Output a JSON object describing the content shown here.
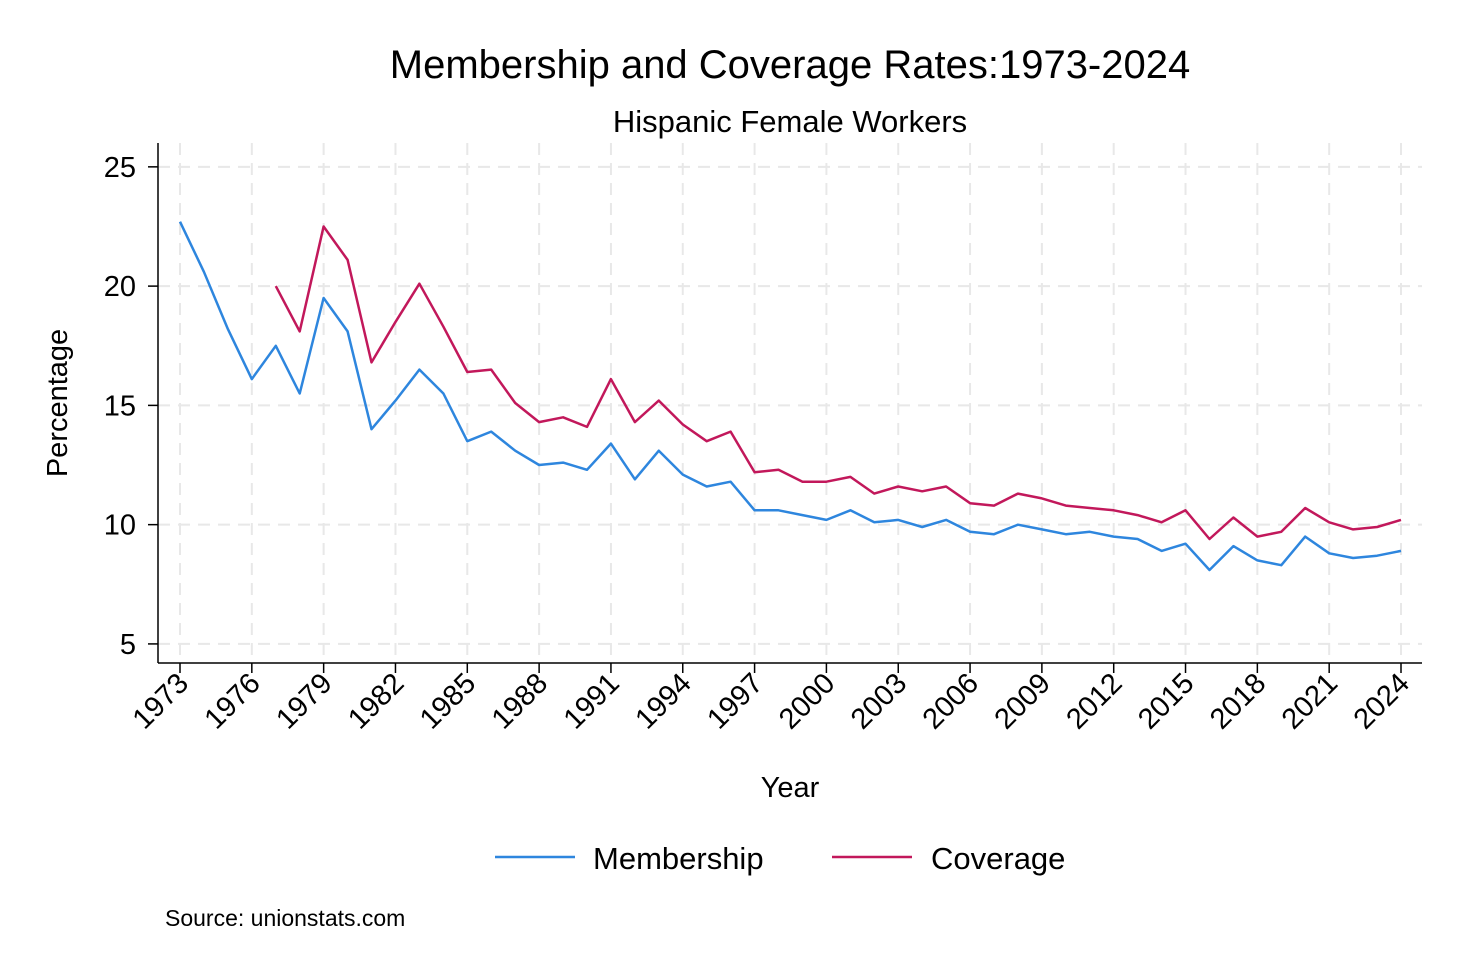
{
  "chart_data": {
    "type": "line",
    "title": "Membership and Coverage Rates:1973-2024",
    "subtitle": "Hispanic Female Workers",
    "xlabel": "Year",
    "ylabel": "Percentage",
    "xlim": [
      1973,
      2024
    ],
    "ylim": [
      4.2,
      26
    ],
    "x_ticks": [
      1973,
      1976,
      1979,
      1982,
      1985,
      1988,
      1991,
      1994,
      1997,
      2000,
      2003,
      2006,
      2009,
      2012,
      2015,
      2018,
      2021,
      2024
    ],
    "y_ticks": [
      5,
      10,
      15,
      20,
      25
    ],
    "grid": true,
    "legend_position": "bottom",
    "series": [
      {
        "name": "Membership",
        "color": "#2e86de",
        "points": [
          [
            1973,
            22.7
          ],
          [
            1974,
            20.6
          ],
          [
            1975,
            18.2
          ],
          [
            1976,
            16.1
          ],
          [
            1977,
            17.5
          ],
          [
            1978,
            15.5
          ],
          [
            1979,
            19.5
          ],
          [
            1980,
            18.1
          ],
          [
            1981,
            14.0
          ],
          [
            1982,
            15.2
          ],
          [
            1983,
            16.5
          ],
          [
            1984,
            15.5
          ],
          [
            1985,
            13.5
          ],
          [
            1986,
            13.9
          ],
          [
            1987,
            13.1
          ],
          [
            1988,
            12.5
          ],
          [
            1989,
            12.6
          ],
          [
            1990,
            12.3
          ],
          [
            1991,
            13.4
          ],
          [
            1992,
            11.9
          ],
          [
            1993,
            13.1
          ],
          [
            1994,
            12.1
          ],
          [
            1995,
            11.6
          ],
          [
            1996,
            11.8
          ],
          [
            1997,
            10.6
          ],
          [
            1998,
            10.6
          ],
          [
            1999,
            10.4
          ],
          [
            2000,
            10.2
          ],
          [
            2001,
            10.6
          ],
          [
            2002,
            10.1
          ],
          [
            2003,
            10.2
          ],
          [
            2004,
            9.9
          ],
          [
            2005,
            10.2
          ],
          [
            2006,
            9.7
          ],
          [
            2007,
            9.6
          ],
          [
            2008,
            10.0
          ],
          [
            2009,
            9.8
          ],
          [
            2010,
            9.6
          ],
          [
            2011,
            9.7
          ],
          [
            2012,
            9.5
          ],
          [
            2013,
            9.4
          ],
          [
            2014,
            8.9
          ],
          [
            2015,
            9.2
          ],
          [
            2016,
            8.1
          ],
          [
            2017,
            9.1
          ],
          [
            2018,
            8.5
          ],
          [
            2019,
            8.3
          ],
          [
            2020,
            9.5
          ],
          [
            2021,
            8.8
          ],
          [
            2022,
            8.6
          ],
          [
            2023,
            8.7
          ],
          [
            2024,
            8.9
          ]
        ]
      },
      {
        "name": "Coverage",
        "color": "#c2185b",
        "points": [
          [
            1977,
            20.0
          ],
          [
            1978,
            18.1
          ],
          [
            1979,
            22.5
          ],
          [
            1980,
            21.1
          ],
          [
            1981,
            16.8
          ],
          [
            1982,
            18.5
          ],
          [
            1983,
            20.1
          ],
          [
            1984,
            18.3
          ],
          [
            1985,
            16.4
          ],
          [
            1986,
            16.5
          ],
          [
            1987,
            15.1
          ],
          [
            1988,
            14.3
          ],
          [
            1989,
            14.5
          ],
          [
            1990,
            14.1
          ],
          [
            1991,
            16.1
          ],
          [
            1992,
            14.3
          ],
          [
            1993,
            15.2
          ],
          [
            1994,
            14.2
          ],
          [
            1995,
            13.5
          ],
          [
            1996,
            13.9
          ],
          [
            1997,
            12.2
          ],
          [
            1998,
            12.3
          ],
          [
            1999,
            11.8
          ],
          [
            2000,
            11.8
          ],
          [
            2001,
            12.0
          ],
          [
            2002,
            11.3
          ],
          [
            2003,
            11.6
          ],
          [
            2004,
            11.4
          ],
          [
            2005,
            11.6
          ],
          [
            2006,
            10.9
          ],
          [
            2007,
            10.8
          ],
          [
            2008,
            11.3
          ],
          [
            2009,
            11.1
          ],
          [
            2010,
            10.8
          ],
          [
            2011,
            10.7
          ],
          [
            2012,
            10.6
          ],
          [
            2013,
            10.4
          ],
          [
            2014,
            10.1
          ],
          [
            2015,
            10.6
          ],
          [
            2016,
            9.4
          ],
          [
            2017,
            10.3
          ],
          [
            2018,
            9.5
          ],
          [
            2019,
            9.7
          ],
          [
            2020,
            10.7
          ],
          [
            2021,
            10.1
          ],
          [
            2022,
            9.8
          ],
          [
            2023,
            9.9
          ],
          [
            2024,
            10.2
          ]
        ]
      }
    ],
    "note": "Source: unionstats.com"
  }
}
